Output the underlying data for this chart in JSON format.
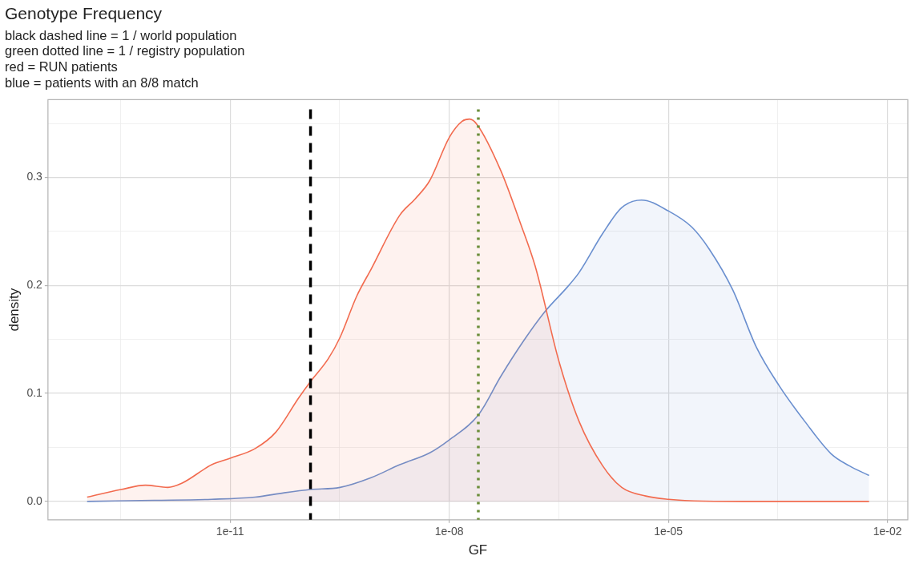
{
  "chart_data": {
    "type": "area",
    "title": "Genotype Frequency",
    "subtitle": "black dashed line = 1 / world population\ngreen dotted line = 1 / registry population\nred = RUN patients\nblue = patients with an 8/8 match",
    "xlabel": "GF",
    "ylabel": "density",
    "log": "x",
    "grid": true,
    "marker": "none",
    "xlim": [
      3.2e-14,
      0.019
    ],
    "xticks": [
      {
        "value": 3.16e-13,
        "label": null
      },
      {
        "value": 1e-11,
        "label": "1e-11"
      },
      {
        "value": 3.16e-10,
        "label": null
      },
      {
        "value": 1e-08,
        "label": "1e-08"
      },
      {
        "value": 3.16e-07,
        "label": null
      },
      {
        "value": 1e-05,
        "label": "1e-05"
      },
      {
        "value": 0.000316,
        "label": null
      },
      {
        "value": 0.01,
        "label": "1e-02"
      }
    ],
    "ylim": [
      -0.017,
      0.372
    ],
    "yticks": [
      {
        "value": 0,
        "label": "0.0"
      },
      {
        "value": 0.05,
        "label": null
      },
      0.1,
      {
        "value": 0.15,
        "label": null
      },
      0.2,
      {
        "value": 0.25,
        "label": null
      },
      0.3,
      {
        "value": 0.35,
        "label": null
      }
    ],
    "ref_lines": [
      {
        "axis": "x",
        "value": 1.26e-10,
        "label": null,
        "color": "#000000",
        "line_style": "dashed"
      },
      {
        "axis": "x",
        "value": 2.5e-08,
        "label": null,
        "color": "#6b8e3a",
        "line_style": "dotted"
      }
    ],
    "series": [
      {
        "color": "#f26b4f",
        "x": [
          1.1e-13,
          3.2e-13,
          6.9e-13,
          1.4e-12,
          2.2e-12,
          5.6e-12,
          1e-11,
          2.2e-11,
          4.2e-11,
          8.7e-11,
          1.26e-10,
          2.2e-10,
          3.2e-10,
          5.4e-10,
          8.5e-10,
          2.1e-09,
          3.4e-09,
          5.4e-09,
          1e-08,
          1.5e-08,
          1.9e-08,
          2.4e-08,
          5.1e-08,
          9.5e-08,
          1.5e-07,
          3.2e-07,
          6e-07,
          1.26e-06,
          2.3e-06,
          4.9e-06,
          1e-05,
          3e-05,
          0.00019,
          0.0056
        ],
        "values": [
          0.004,
          0.011,
          0.015,
          0.013,
          0.017,
          0.034,
          0.04,
          0.049,
          0.064,
          0.096,
          0.111,
          0.132,
          0.152,
          0.19,
          0.215,
          0.265,
          0.28,
          0.297,
          0.337,
          0.352,
          0.354,
          0.349,
          0.306,
          0.257,
          0.218,
          0.129,
          0.074,
          0.033,
          0.013,
          0.005,
          0.002,
          0.0003,
          0,
          0
        ]
      },
      {
        "color": "#6a8fcf",
        "x": [
          1.1e-13,
          9.1e-13,
          5.6e-12,
          2.2e-11,
          5.5e-11,
          1.26e-10,
          3.2e-10,
          8.5e-10,
          2.1e-09,
          5.4e-09,
          1e-08,
          2.5e-08,
          5.1e-08,
          1.05e-07,
          2e-07,
          4.2e-07,
          6e-07,
          1.26e-06,
          2.3e-06,
          4.3e-06,
          1e-05,
          2.1e-05,
          3.6e-05,
          7.6e-05,
          0.00016,
          0.00033,
          0.00074,
          0.0017,
          0.003,
          0.0056
        ],
        "values": [
          0,
          0.001,
          0.002,
          0.004,
          0.008,
          0.011,
          0.013,
          0.022,
          0.034,
          0.045,
          0.057,
          0.08,
          0.116,
          0.149,
          0.175,
          0.199,
          0.212,
          0.248,
          0.272,
          0.279,
          0.269,
          0.254,
          0.234,
          0.196,
          0.143,
          0.107,
          0.074,
          0.044,
          0.033,
          0.024
        ]
      }
    ]
  }
}
